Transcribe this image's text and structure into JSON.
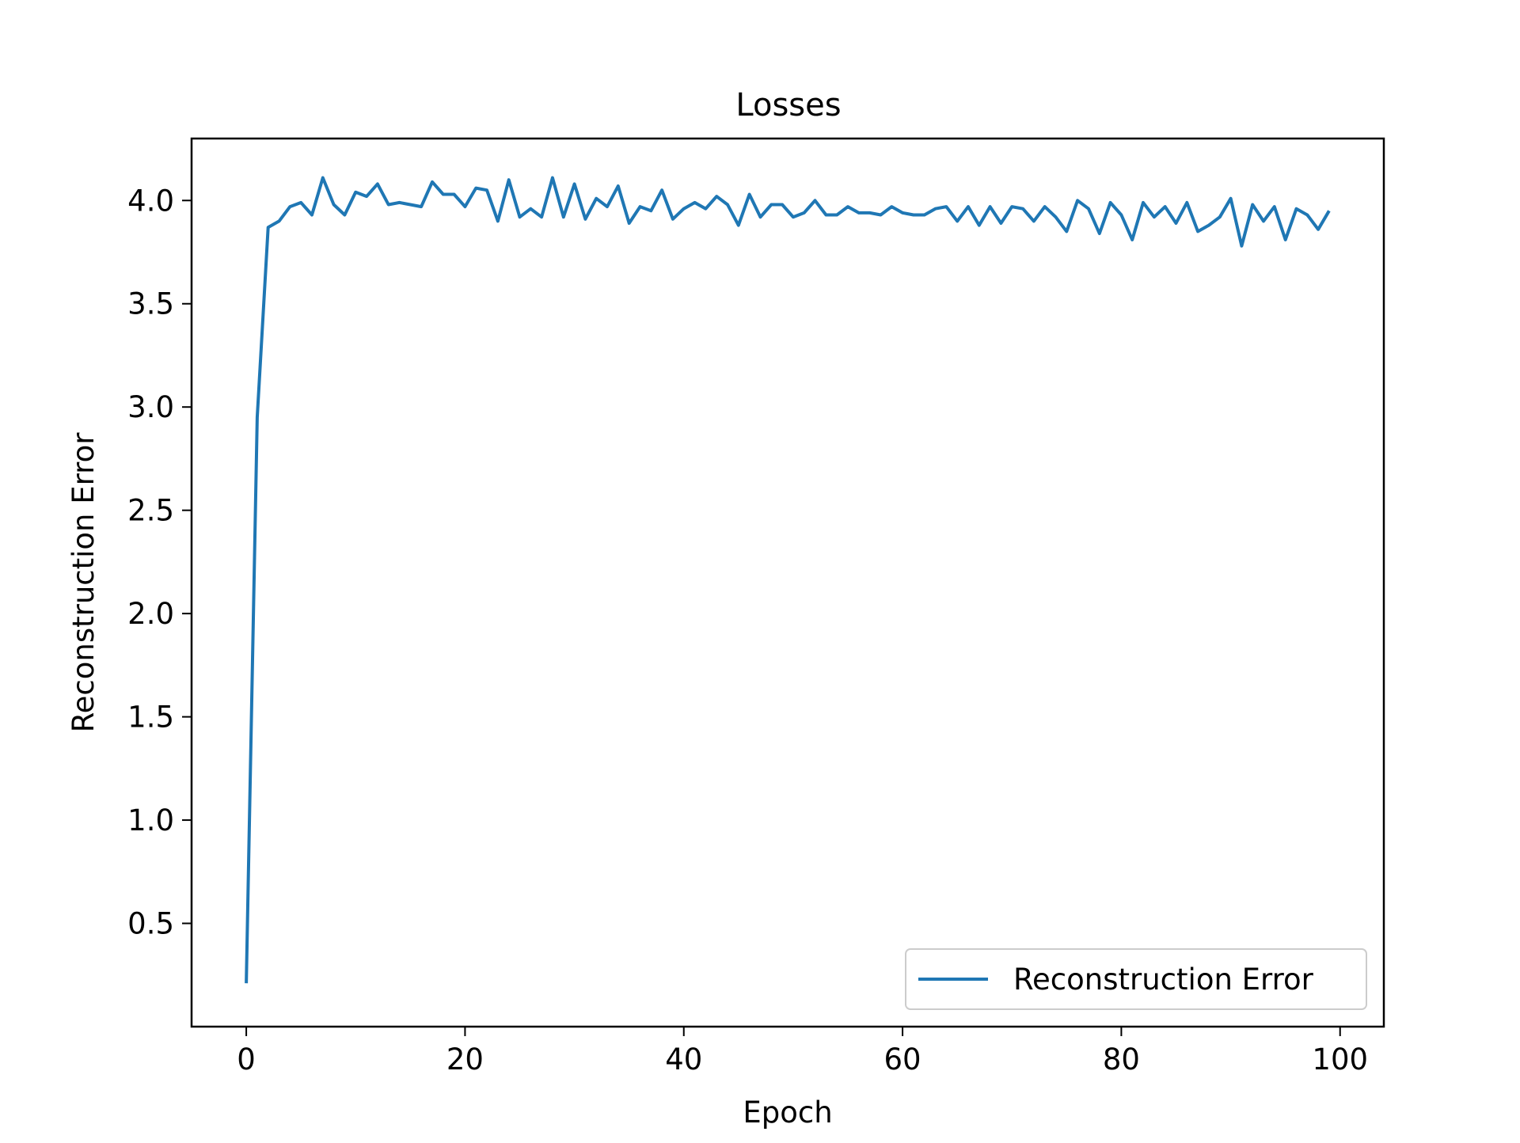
{
  "chart_data": {
    "type": "line",
    "title": "Losses",
    "xlabel": "Epoch",
    "ylabel": "Reconstruction Error",
    "xlim": [
      -5,
      104
    ],
    "ylim": [
      0.0,
      4.3
    ],
    "xticks": [
      0,
      20,
      40,
      60,
      80,
      100
    ],
    "xtick_labels": [
      "0",
      "20",
      "40",
      "60",
      "80",
      "100"
    ],
    "yticks": [
      0.5,
      1.0,
      1.5,
      2.0,
      2.5,
      3.0,
      3.5,
      4.0
    ],
    "ytick_labels": [
      "0.5",
      "1.0",
      "1.5",
      "2.0",
      "2.5",
      "3.0",
      "3.5",
      "4.0"
    ],
    "grid": false,
    "legend_position": "bottom-right",
    "colors": {
      "series": "#1f77b4"
    },
    "series": [
      {
        "name": "Reconstruction Error",
        "x": [
          0,
          1,
          2,
          3,
          4,
          5,
          6,
          7,
          8,
          9,
          10,
          11,
          12,
          13,
          14,
          15,
          16,
          17,
          18,
          19,
          20,
          21,
          22,
          23,
          24,
          25,
          26,
          27,
          28,
          29,
          30,
          31,
          32,
          33,
          34,
          35,
          36,
          37,
          38,
          39,
          40,
          41,
          42,
          43,
          44,
          45,
          46,
          47,
          48,
          49,
          50,
          51,
          52,
          53,
          54,
          55,
          56,
          57,
          58,
          59,
          60,
          61,
          62,
          63,
          64,
          65,
          66,
          67,
          68,
          69,
          70,
          71,
          72,
          73,
          74,
          75,
          76,
          77,
          78,
          79,
          80,
          81,
          82,
          83,
          84,
          85,
          86,
          87,
          88,
          89,
          90,
          91,
          92,
          93,
          94,
          95,
          96,
          97,
          98,
          99
        ],
        "values": [
          0.21,
          2.95,
          3.87,
          3.9,
          3.97,
          3.99,
          3.93,
          4.11,
          3.98,
          3.93,
          4.04,
          4.02,
          4.08,
          3.98,
          3.99,
          3.98,
          3.97,
          4.09,
          4.03,
          4.03,
          3.97,
          4.06,
          4.05,
          3.9,
          4.1,
          3.92,
          3.96,
          3.92,
          4.11,
          3.92,
          4.08,
          3.91,
          4.01,
          3.97,
          4.07,
          3.89,
          3.97,
          3.95,
          4.05,
          3.91,
          3.96,
          3.99,
          3.96,
          4.02,
          3.98,
          3.88,
          4.03,
          3.92,
          3.98,
          3.98,
          3.92,
          3.94,
          4.0,
          3.93,
          3.93,
          3.97,
          3.94,
          3.94,
          3.93,
          3.97,
          3.94,
          3.93,
          3.93,
          3.96,
          3.97,
          3.9,
          3.97,
          3.88,
          3.97,
          3.89,
          3.97,
          3.96,
          3.9,
          3.97,
          3.92,
          3.85,
          4.0,
          3.96,
          3.84,
          3.99,
          3.93,
          3.81,
          3.99,
          3.92,
          3.97,
          3.89,
          3.99,
          3.85,
          3.88,
          3.92,
          4.01,
          3.78,
          3.98,
          3.9,
          3.97,
          3.81,
          3.96,
          3.93,
          3.86,
          3.95
        ]
      }
    ]
  }
}
